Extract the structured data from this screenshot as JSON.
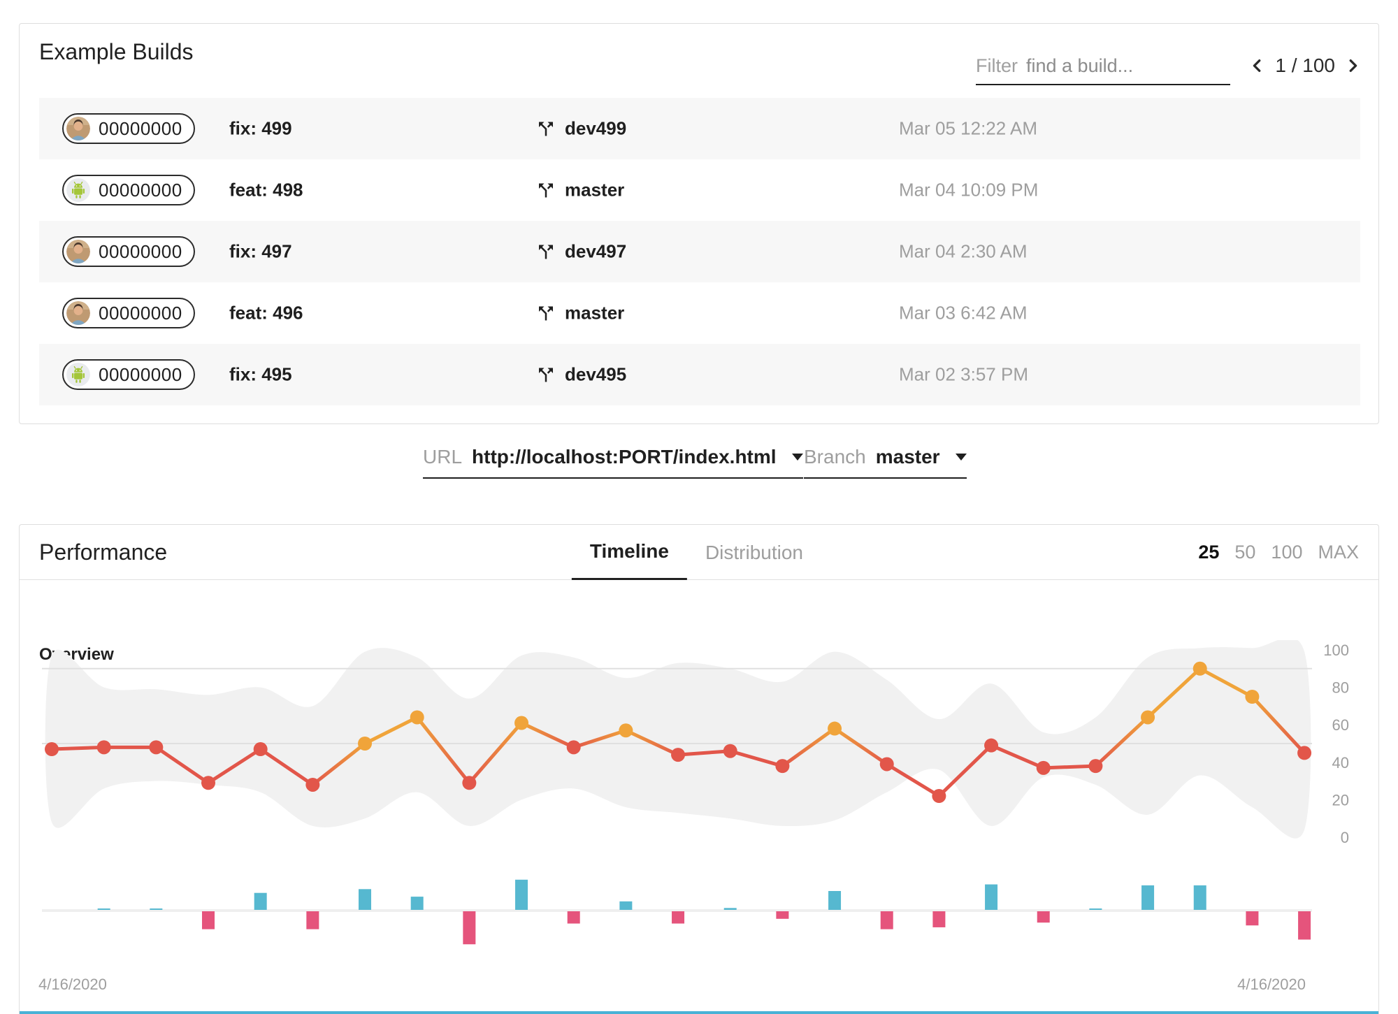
{
  "builds_card": {
    "title": "Example Builds",
    "filter_label": "Filter",
    "filter_placeholder": "find a build...",
    "page_indicator": "1 / 100",
    "rows": [
      {
        "avatar": "man",
        "hash": "00000000",
        "message": "fix: 499",
        "branch": "dev499",
        "date": "Mar 05 12:22 AM"
      },
      {
        "avatar": "android",
        "hash": "00000000",
        "message": "feat: 498",
        "branch": "master",
        "date": "Mar 04 10:09 PM"
      },
      {
        "avatar": "man",
        "hash": "00000000",
        "message": "fix: 497",
        "branch": "dev497",
        "date": "Mar 04 2:30 AM"
      },
      {
        "avatar": "man",
        "hash": "00000000",
        "message": "feat: 496",
        "branch": "master",
        "date": "Mar 03 6:42 AM"
      },
      {
        "avatar": "android",
        "hash": "00000000",
        "message": "fix: 495",
        "branch": "dev495",
        "date": "Mar 02 3:57 PM"
      }
    ]
  },
  "selectors": {
    "url_label": "URL",
    "url_value": "http://localhost:PORT/index.html",
    "branch_label": "Branch",
    "branch_value": "master"
  },
  "performance_card": {
    "title": "Performance",
    "tabs": [
      {
        "label": "Timeline"
      },
      {
        "label": "Distribution"
      }
    ],
    "active_tab": "Timeline",
    "ranges": [
      "25",
      "50",
      "100",
      "MAX"
    ],
    "active_range": "25",
    "section_label": "Overview"
  },
  "chart_data": {
    "type": "line",
    "title": "Overview",
    "x_axis": {
      "start_label": "4/16/2020",
      "end_label": "4/16/2020"
    },
    "ylim": [
      0,
      100
    ],
    "yticks": [
      0,
      20,
      40,
      60,
      80,
      100
    ],
    "threshold_gridlines": [
      50,
      90
    ],
    "score_thresholds": {
      "fail_below": 50,
      "pass_at": 90
    },
    "series": [
      {
        "name": "score",
        "type": "line",
        "values": [
          47,
          48,
          48,
          29,
          47,
          28,
          50,
          64,
          29,
          61,
          48,
          57,
          44,
          46,
          38,
          58,
          39,
          22,
          49,
          37,
          38,
          64,
          90,
          75,
          45
        ]
      },
      {
        "name": "score-range-upper",
        "type": "band-upper",
        "values": [
          97,
          80,
          79,
          76,
          80,
          70,
          99,
          96,
          74,
          97,
          96,
          85,
          93,
          90,
          83,
          99,
          84,
          63,
          82,
          56,
          64,
          96,
          101,
          101,
          99
        ]
      },
      {
        "name": "score-range-lower",
        "type": "band-lower",
        "values": [
          8,
          26,
          30,
          28,
          24,
          6,
          10,
          24,
          6,
          20,
          26,
          16,
          13,
          10,
          6,
          9,
          24,
          36,
          6,
          32,
          28,
          12,
          33,
          16,
          4
        ]
      },
      {
        "name": "score-delta",
        "type": "bar",
        "values": [
          1,
          0,
          -19,
          18,
          -19,
          22,
          14,
          -35,
          32,
          -13,
          9,
          -13,
          2,
          -8,
          20,
          -19,
          -17,
          27,
          -12,
          1,
          26,
          26,
          -15,
          -30
        ]
      }
    ],
    "colors": {
      "score_low": "#e2564a",
      "score_mid": "#f0a43a",
      "score_high": "#7bc96b",
      "delta_up": "#56b8d0",
      "delta_down": "#e5547c",
      "range_band": "#f1f1f1",
      "gridline": "#e0e0e0",
      "zero_line": "#efefef"
    },
    "legend": "none",
    "grid": "threshold-lines-only"
  }
}
